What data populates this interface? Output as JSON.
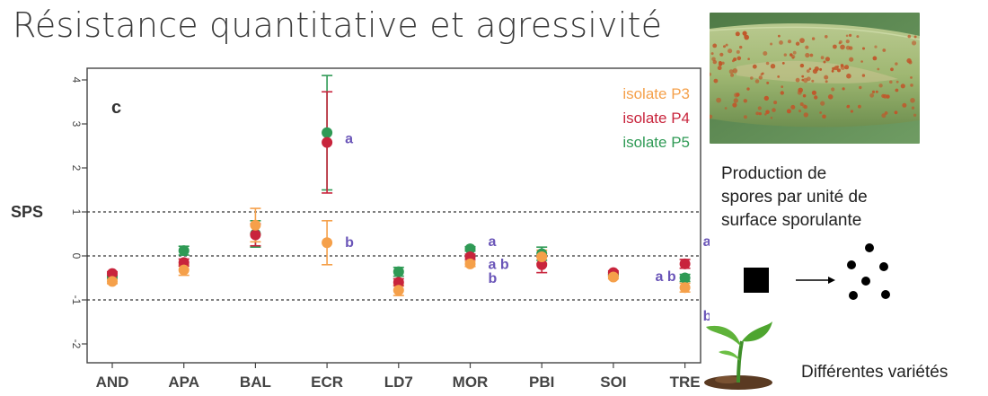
{
  "slide": {
    "title": "Résistance quantitative et agressivité",
    "description_lines": [
      "Production de",
      "spores par unité de",
      "surface sporulante"
    ],
    "varieties_label": "Différentes variétés"
  },
  "icons": {
    "photo": "wheat-leaf-rust-photo",
    "scheme": "square-to-spores-arrow-icon",
    "plant": "seedling-icon"
  },
  "chart_data": {
    "type": "scatter",
    "panel_label": "c",
    "ylabel": "SPS",
    "categories": [
      "AND",
      "APA",
      "BAL",
      "ECR",
      "LD7",
      "MOR",
      "PBI",
      "SOI",
      "TRE"
    ],
    "ylim": [
      -2.2,
      4.1
    ],
    "yticks": [
      -2,
      -1,
      0,
      1,
      2,
      3,
      4
    ],
    "reference_lines": [
      -1,
      0,
      1
    ],
    "legend_position": "top-right",
    "series": [
      {
        "name": "isolate P3",
        "color": "#f5a04a",
        "values": [
          -0.58,
          -0.32,
          0.7,
          0.3,
          -0.78,
          -0.18,
          -0.02,
          -0.48,
          -0.72
        ],
        "errors": [
          0.05,
          0.12,
          0.38,
          0.5,
          0.12,
          0.06,
          0.15,
          0.04,
          0.1
        ]
      },
      {
        "name": "isolate P4",
        "color": "#c8243c",
        "values": [
          -0.4,
          -0.15,
          0.48,
          2.58,
          -0.6,
          -0.02,
          -0.2,
          -0.38,
          -0.18
        ],
        "errors": [
          0.04,
          0.08,
          0.25,
          1.15,
          0.08,
          0.06,
          0.18,
          0.04,
          0.1
        ]
      },
      {
        "name": "isolate P5",
        "color": "#2f9a55",
        "values": [
          -0.48,
          0.12,
          0.5,
          2.8,
          -0.36,
          0.16,
          0.05,
          -0.42,
          -0.5
        ],
        "errors": [
          0.04,
          0.1,
          0.3,
          1.3,
          0.1,
          0.05,
          0.15,
          0.04,
          0.08
        ]
      }
    ],
    "annotations": [
      {
        "category": "ECR",
        "y": 2.65,
        "text": "a"
      },
      {
        "category": "ECR",
        "y": 0.3,
        "text": "b"
      },
      {
        "category": "MOR",
        "y": 0.32,
        "text": "a"
      },
      {
        "category": "MOR",
        "y": -0.2,
        "text": "a b"
      },
      {
        "category": "MOR",
        "y": -0.52,
        "text": "b"
      },
      {
        "category": "TRE",
        "y": 0.32,
        "text": "a"
      },
      {
        "category": "TRE",
        "y": -0.48,
        "text": "a b",
        "side": "left"
      },
      {
        "category": "TRE",
        "y": -1.38,
        "text": "b"
      }
    ]
  }
}
